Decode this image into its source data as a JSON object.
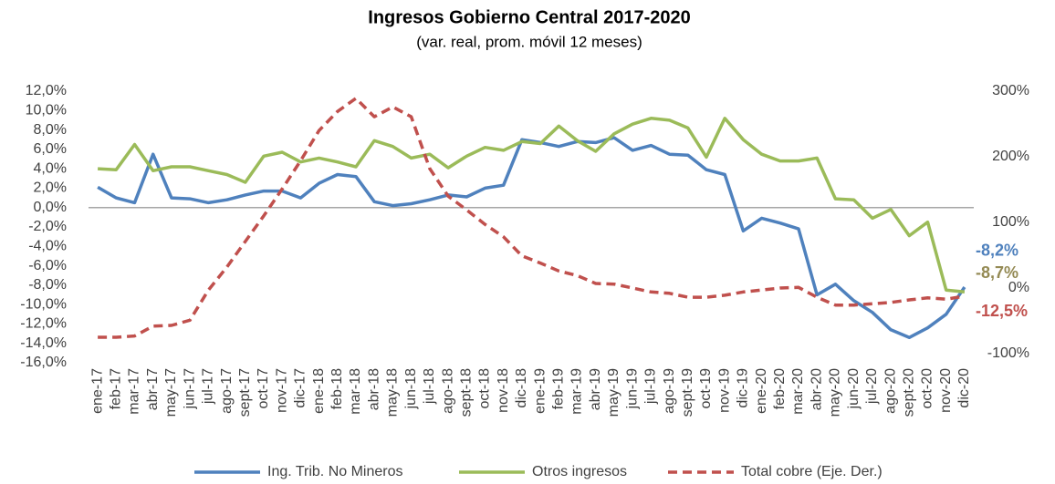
{
  "chart_data": {
    "type": "line",
    "title": "Ingresos Gobierno Central 2017-2020",
    "subtitle": "(var. real, prom. móvil 12 meses)",
    "categories": [
      "ene-17",
      "feb-17",
      "mar-17",
      "abr-17",
      "may-17",
      "jun-17",
      "jul-17",
      "ago-17",
      "sept-17",
      "oct-17",
      "nov-17",
      "dic-17",
      "ene-18",
      "feb-18",
      "mar-18",
      "abr-18",
      "may-18",
      "jun-18",
      "jul-18",
      "ago-18",
      "sept-18",
      "oct-18",
      "nov-18",
      "dic-18",
      "ene-19",
      "feb-19",
      "mar-19",
      "abr-19",
      "may-19",
      "jun-19",
      "jul-19",
      "ago-19",
      "sept-19",
      "oct-19",
      "nov-19",
      "dic-19",
      "ene-20",
      "feb-20",
      "mar-20",
      "abr-20",
      "may-20",
      "jun-20",
      "jul-20",
      "ago-20",
      "sept-20",
      "oct-20",
      "nov-20",
      "dic-20"
    ],
    "series": [
      {
        "name": "Ing. Trib. No Mineros",
        "color": "#4f81bd",
        "label_color": "#4f81bd",
        "dashed": false,
        "values": [
          2.1,
          1.0,
          0.5,
          5.5,
          1.0,
          0.9,
          0.5,
          0.8,
          1.3,
          1.7,
          1.7,
          1.0,
          2.5,
          3.4,
          3.2,
          0.6,
          0.2,
          0.4,
          0.8,
          1.3,
          1.1,
          2.0,
          2.3,
          7.0,
          6.7,
          6.3,
          6.8,
          6.7,
          7.2,
          5.9,
          6.4,
          5.5,
          5.4,
          3.9,
          3.4,
          -2.4,
          -1.1,
          -1.6,
          -2.2,
          -9.0,
          -7.9,
          -9.6,
          -10.8,
          -12.6,
          -13.4,
          -12.4,
          -11.0,
          -8.2
        ],
        "value_labels": [
          null,
          null,
          null,
          null,
          null,
          null,
          null,
          null,
          null,
          null,
          null,
          null,
          null,
          null,
          null,
          null,
          null,
          null,
          null,
          null,
          null,
          null,
          null,
          null,
          null,
          null,
          null,
          null,
          null,
          null,
          null,
          null,
          null,
          null,
          null,
          null,
          null,
          null,
          null,
          null,
          null,
          null,
          null,
          null,
          null,
          null,
          null,
          "-8,2%"
        ]
      },
      {
        "name": "Otros ingresos",
        "color": "#9bbb59",
        "label_color": "#948a54",
        "dashed": false,
        "values": [
          4.0,
          3.9,
          6.5,
          3.8,
          4.2,
          4.2,
          3.8,
          3.4,
          2.6,
          5.3,
          5.7,
          4.7,
          5.1,
          4.7,
          4.2,
          6.9,
          6.3,
          5.1,
          5.5,
          4.1,
          5.3,
          6.2,
          5.9,
          6.8,
          6.6,
          8.4,
          6.9,
          5.8,
          7.6,
          8.6,
          9.2,
          9.0,
          8.2,
          5.2,
          9.2,
          7.0,
          5.5,
          4.8,
          4.8,
          5.1,
          0.9,
          0.8,
          -1.1,
          -0.2,
          -2.9,
          -1.5,
          -8.5,
          -8.7
        ],
        "value_labels": [
          null,
          null,
          null,
          null,
          null,
          null,
          null,
          null,
          null,
          null,
          null,
          null,
          null,
          null,
          null,
          null,
          null,
          null,
          null,
          null,
          null,
          null,
          null,
          null,
          null,
          null,
          null,
          null,
          null,
          null,
          null,
          null,
          null,
          null,
          null,
          null,
          null,
          null,
          null,
          null,
          null,
          null,
          null,
          null,
          null,
          null,
          null,
          "-8,7%"
        ]
      },
      {
        "name": "Total cobre (Eje. Der.)",
        "color": "#c0504d",
        "label_color": "#c0504d",
        "dashed": true,
        "axis": "y2",
        "values": [
          -75,
          -75,
          -73,
          -58,
          -57,
          -49,
          -3,
          32,
          71,
          110,
          151,
          194,
          240,
          269,
          289,
          261,
          276,
          261,
          182,
          140,
          119,
          97,
          78,
          49,
          38,
          26,
          19,
          7,
          6,
          0,
          -6,
          -8,
          -14,
          -14,
          -11,
          -6,
          -3,
          0,
          1,
          -14,
          -26,
          -26,
          -24,
          -22,
          -18,
          -15,
          -17,
          -12.5
        ],
        "value_labels": [
          null,
          null,
          null,
          null,
          null,
          null,
          null,
          null,
          null,
          null,
          null,
          null,
          null,
          null,
          null,
          null,
          null,
          null,
          null,
          null,
          null,
          null,
          null,
          null,
          null,
          null,
          null,
          null,
          null,
          null,
          null,
          null,
          null,
          null,
          null,
          null,
          null,
          null,
          null,
          null,
          null,
          null,
          null,
          null,
          null,
          null,
          null,
          "-12,5%"
        ]
      }
    ],
    "ylim": [
      -16,
      12
    ],
    "yticks": [
      {
        "value": 12,
        "label": "12,0%"
      },
      {
        "value": 10,
        "label": "10,0%"
      },
      {
        "value": 8,
        "label": "8,0%"
      },
      {
        "value": 6,
        "label": "6,0%"
      },
      {
        "value": 4,
        "label": "4,0%"
      },
      {
        "value": 2,
        "label": "2,0%"
      },
      {
        "value": 0,
        "label": "0,0%"
      },
      {
        "value": -2,
        "label": "-2,0%"
      },
      {
        "value": -4,
        "label": "-4,0%"
      },
      {
        "value": -6,
        "label": "-6,0%"
      },
      {
        "value": -8,
        "label": "-8,0%"
      },
      {
        "value": -10,
        "label": "-10,0%"
      },
      {
        "value": -12,
        "label": "-12,0%"
      },
      {
        "value": -14,
        "label": "-14,0%"
      },
      {
        "value": -16,
        "label": "-16,0%"
      }
    ],
    "y2lim": [
      -100,
      300
    ],
    "y2ticks": [
      {
        "value": 300,
        "label": "300%"
      },
      {
        "value": 200,
        "label": "200%"
      },
      {
        "value": 100,
        "label": "100%"
      },
      {
        "value": 0,
        "label": "0%"
      },
      {
        "value": -100,
        "label": "-100%"
      }
    ],
    "grid": false,
    "legend": "bottom"
  }
}
